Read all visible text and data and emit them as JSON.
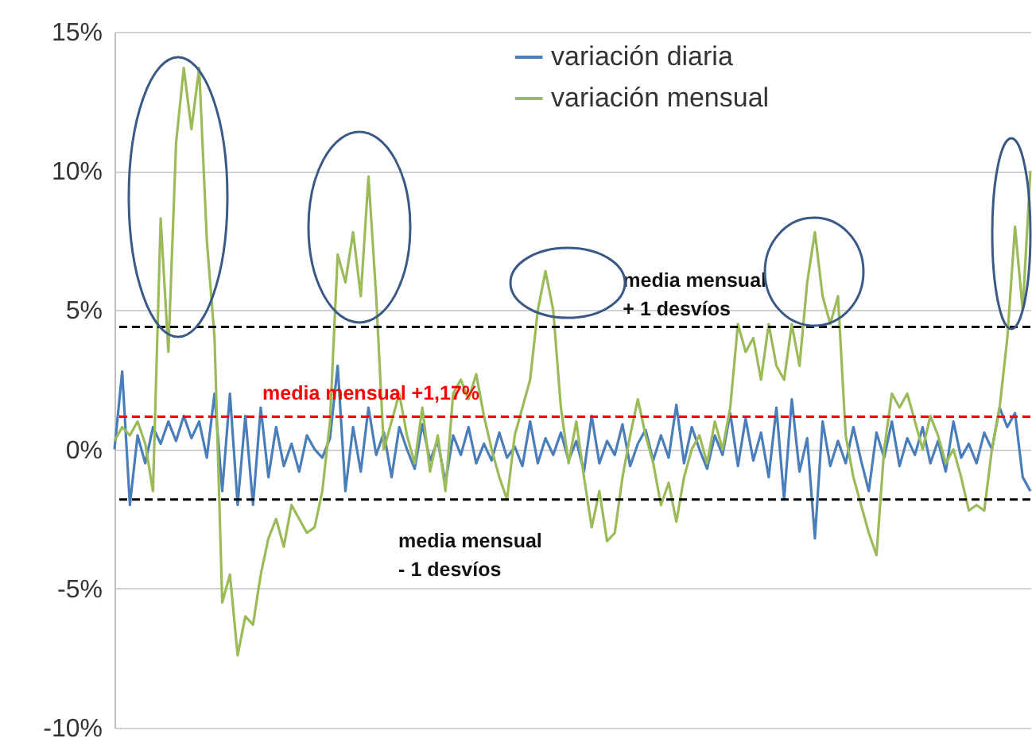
{
  "chart_data": {
    "type": "line",
    "categories": [
      null,
      null,
      null,
      null,
      null,
      null,
      null,
      null,
      null,
      null,
      null,
      null,
      null,
      null,
      null,
      null,
      null,
      null,
      null,
      null,
      null,
      null,
      null,
      null,
      null,
      null,
      null,
      null,
      null,
      null,
      null,
      null,
      null,
      null,
      null,
      null,
      null,
      null,
      null,
      null,
      null,
      null,
      null,
      null,
      null,
      null,
      null,
      null,
      null,
      null,
      null,
      null,
      null,
      null,
      null,
      null,
      null,
      null,
      null,
      null,
      null,
      null,
      null,
      null,
      null,
      null,
      null,
      null,
      null,
      null,
      null,
      null,
      null,
      null,
      null,
      null,
      null,
      null,
      null,
      null,
      null,
      null,
      null,
      null,
      null,
      null,
      null,
      null,
      null,
      null,
      null,
      null,
      null,
      null,
      null,
      null,
      null,
      null,
      null,
      null,
      null,
      null,
      null,
      null,
      null,
      null,
      null,
      null,
      null,
      null,
      null,
      null,
      null,
      null,
      null,
      null,
      null,
      null,
      null,
      null
    ],
    "series": [
      {
        "name": "variación diaria",
        "color": "#4a7ebb",
        "values": [
          0.0,
          2.8,
          -2.0,
          0.5,
          -0.5,
          0.8,
          0.2,
          1.0,
          0.3,
          1.2,
          0.4,
          1.0,
          -0.3,
          2.0,
          -1.5,
          2.0,
          -2.0,
          1.2,
          -2.0,
          1.5,
          -1.0,
          0.8,
          -0.6,
          0.2,
          -0.8,
          0.5,
          0.0,
          -0.3,
          0.4,
          3.0,
          -1.5,
          0.8,
          -0.8,
          1.5,
          -0.2,
          0.6,
          -1.0,
          0.8,
          0.0,
          -0.7,
          0.9,
          -0.4,
          0.3,
          -1.2,
          0.5,
          -0.2,
          0.8,
          -0.5,
          0.2,
          -0.4,
          0.6,
          -0.3,
          0.1,
          -0.6,
          1.0,
          -0.5,
          0.4,
          -0.2,
          0.6,
          -0.4,
          0.3,
          -0.8,
          1.2,
          -0.5,
          0.3,
          -0.2,
          0.9,
          -0.6,
          0.2,
          0.7,
          -0.4,
          0.5,
          -0.3,
          1.6,
          -0.5,
          0.8,
          0.0,
          -0.7,
          0.5,
          -0.2,
          1.3,
          -0.6,
          1.1,
          -0.4,
          0.6,
          -1.0,
          1.5,
          -1.8,
          1.8,
          -0.8,
          0.4,
          -3.2,
          1.0,
          -0.6,
          0.3,
          -0.5,
          0.8,
          -0.4,
          -1.5,
          0.6,
          -0.3,
          1.0,
          -0.6,
          0.4,
          -0.2,
          0.8,
          -0.5,
          0.3,
          -0.8,
          1.0,
          -0.3,
          0.2,
          -0.5,
          0.6,
          0.0,
          1.5,
          0.8,
          1.3,
          -1.0,
          -1.5
        ]
      },
      {
        "name": "variación mensual",
        "color": "#9bbb59",
        "values": [
          0.3,
          0.8,
          0.5,
          1.0,
          0.2,
          -1.5,
          8.3,
          3.5,
          11.0,
          13.7,
          11.5,
          13.7,
          7.5,
          4.0,
          -5.5,
          -4.5,
          -7.4,
          -6.0,
          -6.3,
          -4.5,
          -3.2,
          -2.5,
          -3.5,
          -2.0,
          -2.5,
          -3.0,
          -2.8,
          -1.5,
          1.0,
          7.0,
          6.0,
          7.8,
          5.5,
          9.8,
          5.5,
          0.0,
          1.0,
          2.0,
          0.5,
          -0.5,
          1.5,
          -0.8,
          0.5,
          -1.5,
          2.0,
          2.5,
          1.8,
          2.7,
          1.2,
          0.0,
          -1.0,
          -1.8,
          0.5,
          1.5,
          2.5,
          5.0,
          6.4,
          5.0,
          1.5,
          -0.5,
          1.0,
          -1.0,
          -2.8,
          -1.5,
          -3.3,
          -3.0,
          -1.0,
          0.5,
          1.8,
          0.5,
          -0.5,
          -2.0,
          -1.2,
          -2.6,
          -1.0,
          0.0,
          0.5,
          -0.5,
          1.0,
          0.0,
          1.5,
          4.5,
          3.5,
          4.0,
          2.5,
          4.5,
          3.0,
          2.5,
          4.5,
          3.0,
          6.0,
          7.8,
          5.5,
          4.5,
          5.5,
          0.5,
          -1.0,
          -2.0,
          -3.0,
          -3.8,
          0.0,
          2.0,
          1.5,
          2.0,
          1.0,
          0.0,
          1.2,
          0.5,
          -0.5,
          0.0,
          -1.0,
          -2.2,
          -2.0,
          -2.2,
          0.0,
          1.5,
          4.0,
          8.0,
          5.0,
          10.0
        ]
      }
    ],
    "ylim": [
      -10,
      15
    ],
    "yticks": [
      {
        "value": -10,
        "label": "-10%"
      },
      {
        "value": -5,
        "label": "-5%"
      },
      {
        "value": 0,
        "label": "0%"
      },
      {
        "value": 5,
        "label": "5%"
      },
      {
        "value": 10,
        "label": "10%"
      },
      {
        "value": 15,
        "label": "15%"
      }
    ],
    "ref_lines": [
      {
        "axis": "y",
        "value": 4.4,
        "label": "media mensual\n+ 1 desvíos",
        "color": "#000000",
        "line_style": "dashed"
      },
      {
        "axis": "y",
        "value": 1.17,
        "label": "media mensual +1,17%",
        "color": "#ff0000",
        "line_style": "dashed"
      },
      {
        "axis": "y",
        "value": -1.8,
        "label": "media mensual\n- 1 desvíos",
        "color": "#000000",
        "line_style": "dashed"
      }
    ],
    "grid": "y",
    "legend": "top right",
    "tick_labels": "y",
    "marker": "none",
    "line_style": "solid"
  }
}
